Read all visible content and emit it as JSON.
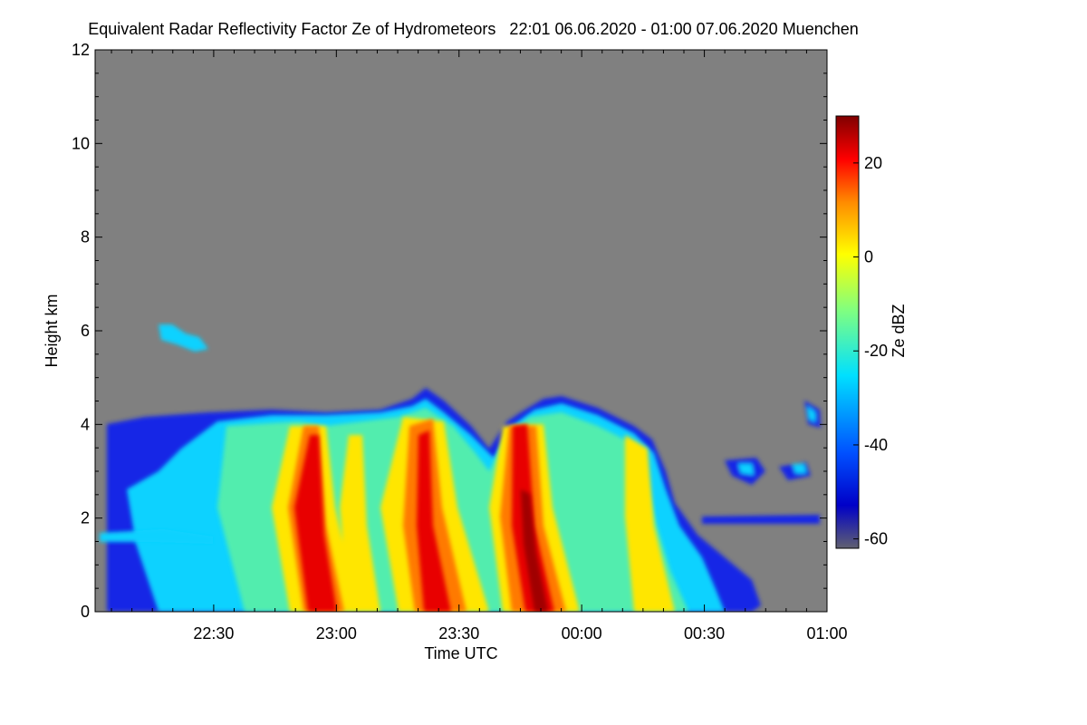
{
  "chart_data": {
    "type": "heatmap",
    "title": "Equivalent Radar Reflectivity Factor Ze of Hydrometeors   22:01 06.06.2020 - 01:00 07.06.2020 Muenchen",
    "xlabel": "Time UTC",
    "ylabel": "Height km",
    "ylim": [
      0,
      12
    ],
    "xlim_minutes_since_2200": [
      1,
      180
    ],
    "x_ticks": [
      {
        "label": "22:30",
        "minutes": 30
      },
      {
        "label": "23:00",
        "minutes": 60
      },
      {
        "label": "23:30",
        "minutes": 90
      },
      {
        "label": "00:00",
        "minutes": 120
      },
      {
        "label": "00:30",
        "minutes": 150
      },
      {
        "label": "01:00",
        "minutes": 180
      }
    ],
    "y_ticks": [
      0,
      2,
      4,
      6,
      8,
      10,
      12
    ],
    "colorbar": {
      "label": "Ze dBZ",
      "range": [
        -62,
        30
      ],
      "ticks": [
        20,
        0,
        -20,
        -40,
        -60
      ],
      "colors": [
        "#606070",
        "#0000c8",
        "#0050ff",
        "#00e0ff",
        "#80ff80",
        "#ffff00",
        "#ff8c00",
        "#ff0000",
        "#800000"
      ]
    },
    "background_color": "#808080",
    "features": [
      {
        "name": "elevated-patch",
        "t_minutes": [
          16,
          28
        ],
        "height_km": [
          5.5,
          6.2
        ],
        "ze_dbz": -30
      },
      {
        "name": "stratiform-deck",
        "t_minutes": [
          5,
          138
        ],
        "height_km": [
          0.0,
          4.3
        ],
        "ze_dbz": -25
      },
      {
        "name": "fallstreak-1",
        "t_minutes": [
          48,
          58
        ],
        "height_km": [
          0.0,
          4.0
        ],
        "peak_ze_dbz": 15
      },
      {
        "name": "fallstreak-2",
        "t_minutes": [
          78,
          92
        ],
        "height_km": [
          0.0,
          4.5
        ],
        "peak_ze_dbz": 15
      },
      {
        "name": "fallstreak-3",
        "t_minutes": [
          102,
          114
        ],
        "height_km": [
          0.0,
          4.1
        ],
        "peak_ze_dbz": 25
      },
      {
        "name": "fallstreak-4",
        "t_minutes": [
          132,
          140
        ],
        "height_km": [
          0.0,
          4.0
        ],
        "peak_ze_dbz": 5
      },
      {
        "name": "scattered-cells",
        "t_minutes": [
          150,
          180
        ],
        "height_km": [
          1.8,
          4.5
        ],
        "ze_dbz": -30
      }
    ]
  }
}
